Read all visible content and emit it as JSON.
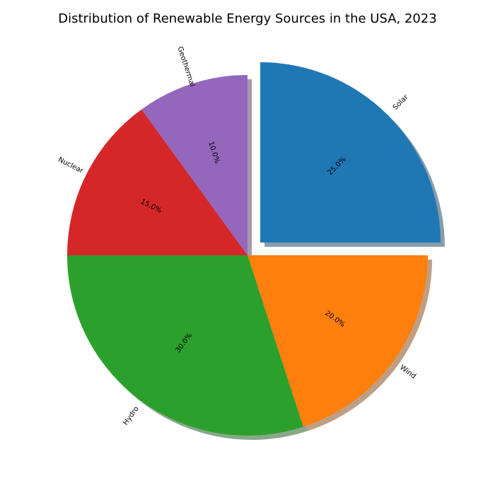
{
  "chart_data": {
    "type": "pie",
    "title": "Distribution of Renewable Energy Sources in the USA, 2023",
    "categories": [
      "Solar",
      "Wind",
      "Hydro",
      "Nuclear",
      "Geothermal"
    ],
    "values": [
      25,
      20,
      30,
      15,
      10
    ],
    "value_labels": [
      "25.0%",
      "20.0%",
      "30.0%",
      "15.0%",
      "10.0%"
    ],
    "colors": [
      "#1f77b4",
      "#ff7f0e",
      "#2ca02c",
      "#d62728",
      "#9467bd"
    ],
    "exploded": [
      "Solar"
    ],
    "shadow": true,
    "start_angle_deg": 90,
    "direction": "clockwise",
    "legend": "none"
  }
}
